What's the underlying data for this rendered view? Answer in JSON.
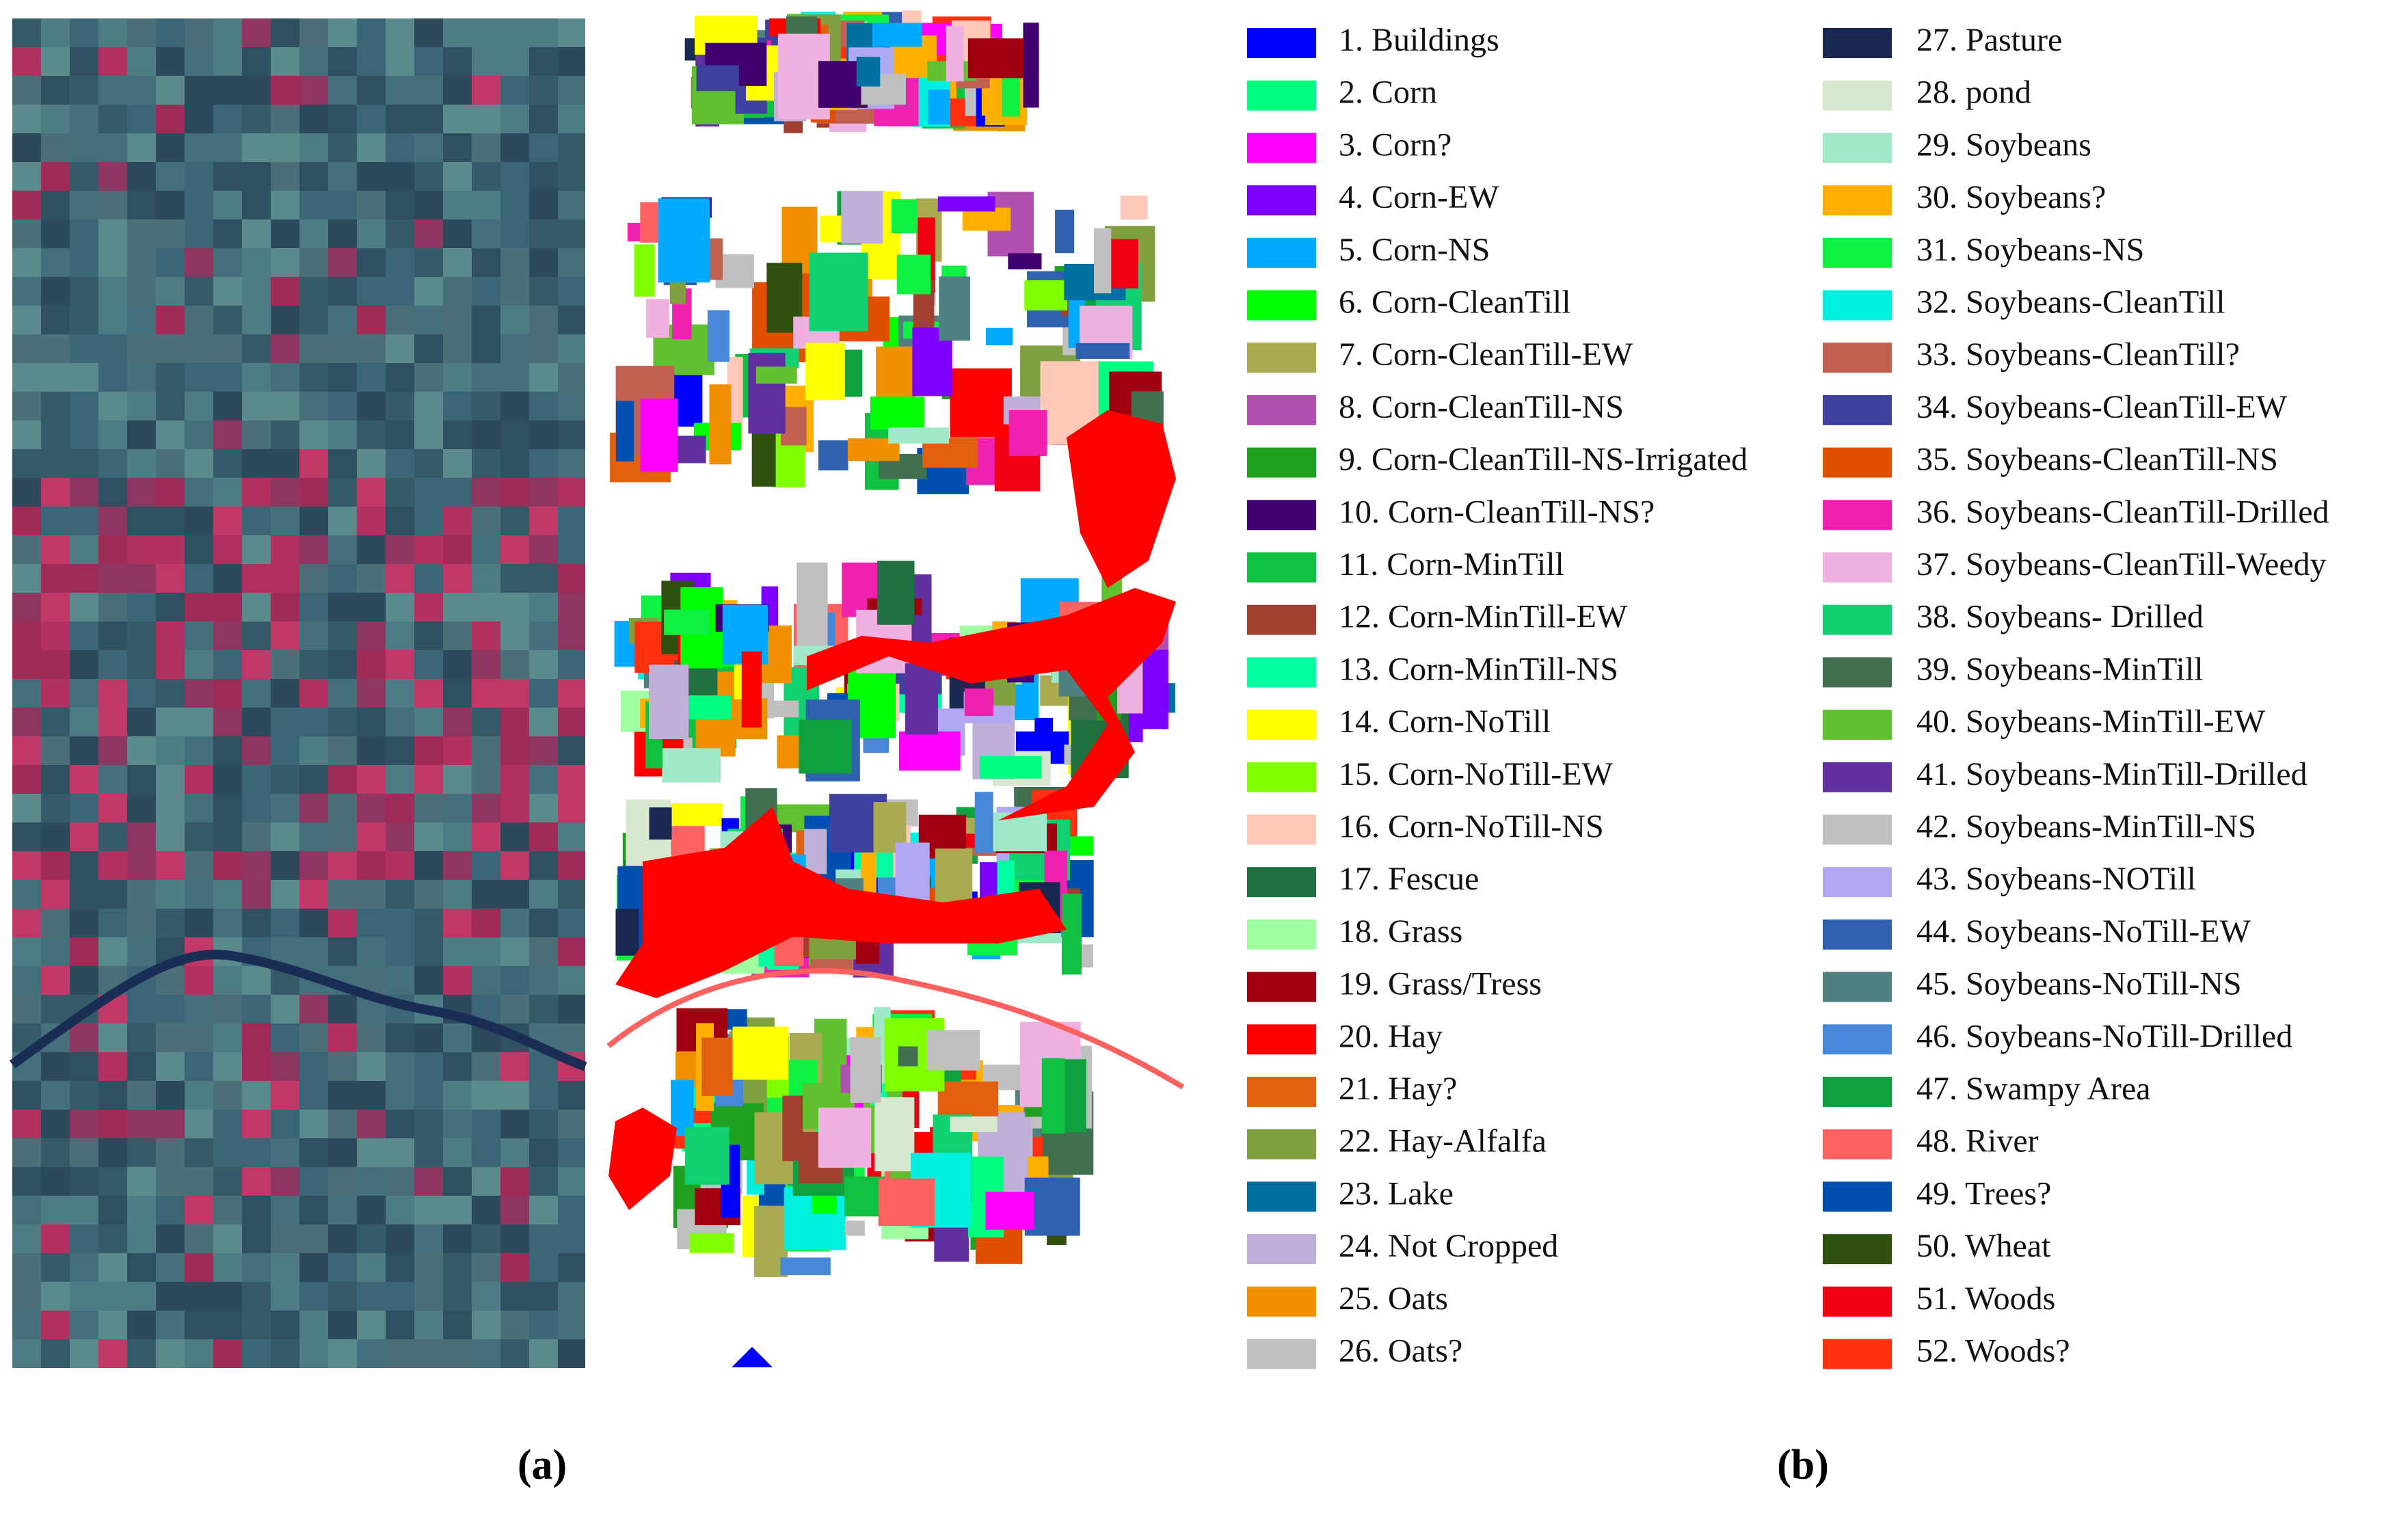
{
  "panels": {
    "a": "(a)",
    "b": "(b)"
  },
  "legend": [
    {
      "label": "1. Buildings",
      "color": "#0000ff"
    },
    {
      "label": "2. Corn",
      "color": "#00ff80"
    },
    {
      "label": "3. Corn?",
      "color": "#ff00ff"
    },
    {
      "label": "4. Corn-EW",
      "color": "#8000ff"
    },
    {
      "label": "5. Corn-NS",
      "color": "#00aaff"
    },
    {
      "label": "6. Corn-CleanTill",
      "color": "#00ff00"
    },
    {
      "label": "7. Corn-CleanTill-EW",
      "color": "#aaaa50"
    },
    {
      "label": "8. Corn-CleanTill-NS",
      "color": "#b050b0"
    },
    {
      "label": "9. Corn-CleanTill-NS-Irrigated",
      "color": "#20a020"
    },
    {
      "label": "10. Corn-CleanTill-NS?",
      "color": "#400070"
    },
    {
      "label": "11. Corn-MinTill",
      "color": "#10c040"
    },
    {
      "label": "12. Corn-MinTill-EW",
      "color": "#a04030"
    },
    {
      "label": "13. Corn-MinTill-NS",
      "color": "#00ffa0"
    },
    {
      "label": "14. Corn-NoTill",
      "color": "#ffff00"
    },
    {
      "label": "15. Corn-NoTill-EW",
      "color": "#80ff00"
    },
    {
      "label": "16. Corn-NoTill-NS",
      "color": "#ffc8b8"
    },
    {
      "label": "17. Fescue",
      "color": "#207040"
    },
    {
      "label": "18. Grass",
      "color": "#a0ffa0"
    },
    {
      "label": "19. Grass/Tress",
      "color": "#a00010"
    },
    {
      "label": "20. Hay",
      "color": "#ff0000"
    },
    {
      "label": "21. Hay?",
      "color": "#e06010"
    },
    {
      "label": "22. Hay-Alfalfa",
      "color": "#80a040"
    },
    {
      "label": "23. Lake",
      "color": "#0070a0"
    },
    {
      "label": "24. Not Cropped",
      "color": "#c0b0d8"
    },
    {
      "label": "25. Oats",
      "color": "#f09000"
    },
    {
      "label": "26. Oats?",
      "color": "#c0c0c0"
    },
    {
      "label": "27. Pasture",
      "color": "#182850"
    },
    {
      "label": "28. pond",
      "color": "#d8e8d0"
    },
    {
      "label": "29. Soybeans",
      "color": "#a0e8c8"
    },
    {
      "label": "30. Soybeans?",
      "color": "#ffb000"
    },
    {
      "label": "31. Soybeans-NS",
      "color": "#10f040"
    },
    {
      "label": "32. Soybeans-CleanTill",
      "color": "#00f0e0"
    },
    {
      "label": "33. Soybeans-CleanTill?",
      "color": "#c06050"
    },
    {
      "label": "34. Soybeans-CleanTill-EW",
      "color": "#4040a0"
    },
    {
      "label": "35. Soybeans-CleanTill-NS",
      "color": "#e05000"
    },
    {
      "label": "36. Soybeans-CleanTill-Drilled",
      "color": "#f020b0"
    },
    {
      "label": "37. Soybeans-CleanTill-Weedy",
      "color": "#f0b0e0"
    },
    {
      "label": "38. Soybeans- Drilled",
      "color": "#10d070"
    },
    {
      "label": "39. Soybeans-MinTill",
      "color": "#407050"
    },
    {
      "label": "40. Soybeans-MinTill-EW",
      "color": "#60c030"
    },
    {
      "label": "41. Soybeans-MinTill-Drilled",
      "color": "#6030a0"
    },
    {
      "label": "42. Soybeans-MinTill-NS",
      "color": "#c0c0c0"
    },
    {
      "label": "43. Soybeans-NOTill",
      "color": "#b0a8f0"
    },
    {
      "label": "44. Soybeans-NoTill-EW",
      "color": "#3060b0"
    },
    {
      "label": "45. Soybeans-NoTill-NS",
      "color": "#508080"
    },
    {
      "label": "46. Soybeans-NoTill-Drilled",
      "color": "#4888d8"
    },
    {
      "label": "47. Swampy Area",
      "color": "#10a040"
    },
    {
      "label": "48. River",
      "color": "#ff6060"
    },
    {
      "label": "49. Trees?",
      "color": "#0050b0"
    },
    {
      "label": "50. Wheat",
      "color": "#305010"
    },
    {
      "label": "51. Woods",
      "color": "#f00010"
    },
    {
      "label": "52. Woods?",
      "color": "#ff3010"
    }
  ]
}
